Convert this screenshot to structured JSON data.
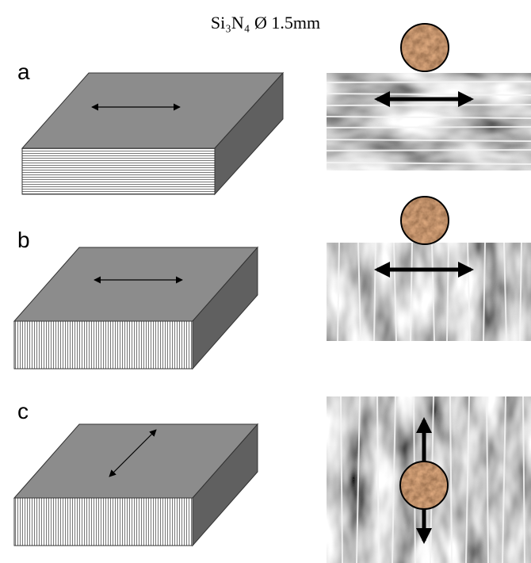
{
  "title": "Si₃N₄ Ø 1.5mm",
  "panels": [
    {
      "label": "a"
    },
    {
      "label": "b"
    },
    {
      "label": "c"
    }
  ]
}
